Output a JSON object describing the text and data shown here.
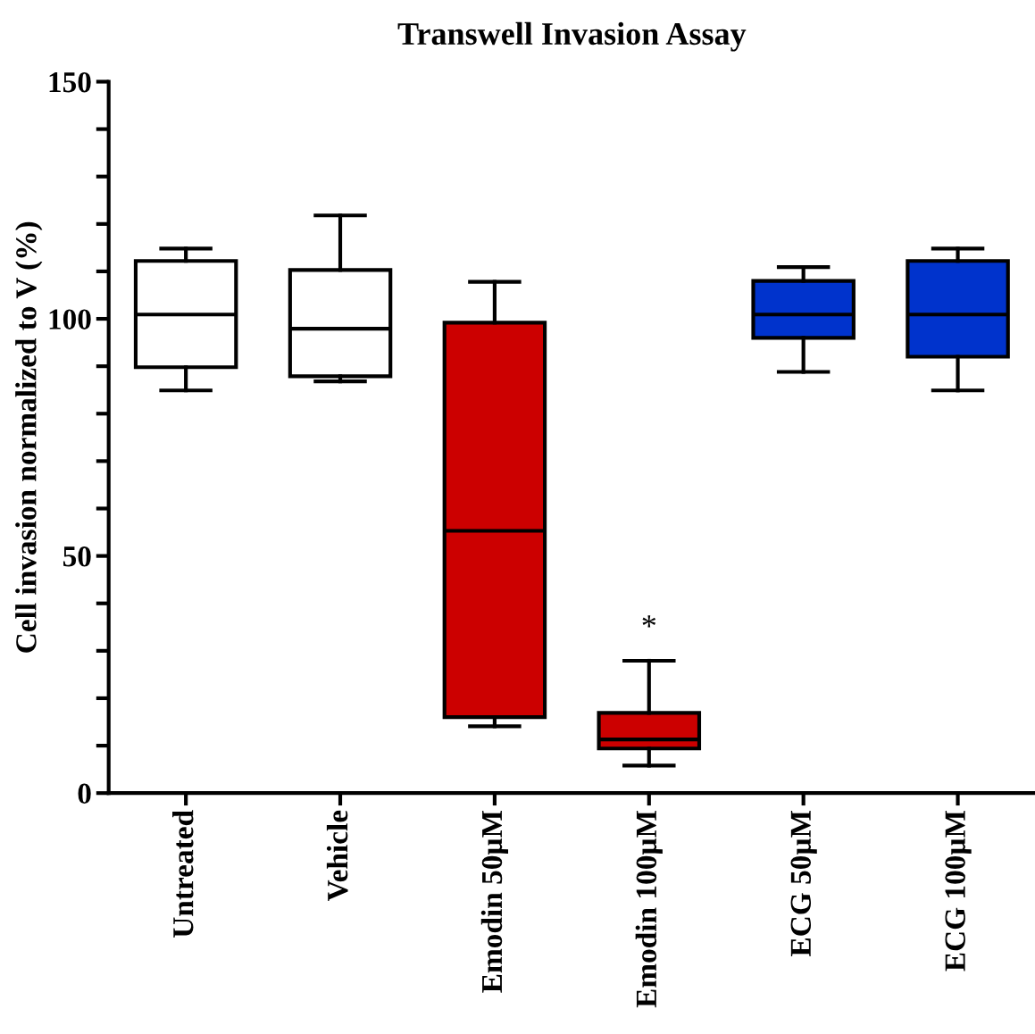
{
  "chart_data": {
    "type": "box",
    "title": "Transwell Invasion Assay",
    "ylabel": "Cell invasion normalized to V (%)",
    "categories": [
      "Untreated",
      "Vehicle",
      "Emodin 50µM",
      "Emodin 100µM",
      "ECG 50µM",
      "ECG 100µM"
    ],
    "colors": [
      "#ffffff",
      "#ffffff",
      "#cc0000",
      "#cc0000",
      "#0033cc",
      "#0033cc"
    ],
    "boxes": [
      {
        "low": 84.9,
        "q1": 89.8,
        "median": 100.9,
        "q3": 112.2,
        "high": 114.8
      },
      {
        "low": 86.8,
        "q1": 87.9,
        "median": 97.9,
        "q3": 110.3,
        "high": 121.8
      },
      {
        "low": 14.1,
        "q1": 16.0,
        "median": 55.3,
        "q3": 99.2,
        "high": 107.8
      },
      {
        "low": 5.8,
        "q1": 9.4,
        "median": 11.3,
        "q3": 16.9,
        "high": 27.9
      },
      {
        "low": 88.8,
        "q1": 96.0,
        "median": 100.9,
        "q3": 108.0,
        "high": 110.9
      },
      {
        "low": 84.9,
        "q1": 92.0,
        "median": 100.9,
        "q3": 112.2,
        "high": 114.8
      }
    ],
    "ylim": [
      0,
      150
    ],
    "yticks": [
      0,
      {
        "value": 10,
        "label": null
      },
      {
        "value": 20,
        "label": null
      },
      {
        "value": 30,
        "label": null
      },
      {
        "value": 40,
        "label": null
      },
      50,
      {
        "value": 60,
        "label": null
      },
      {
        "value": 70,
        "label": null
      },
      {
        "value": 80,
        "label": null
      },
      {
        "value": 90,
        "label": null
      },
      100,
      {
        "value": 110,
        "label": null
      },
      {
        "value": 120,
        "label": null
      },
      {
        "value": 130,
        "label": null
      },
      {
        "value": 140,
        "label": null
      },
      150
    ],
    "annotations": [
      "*"
    ],
    "grid": false,
    "legend": false
  }
}
